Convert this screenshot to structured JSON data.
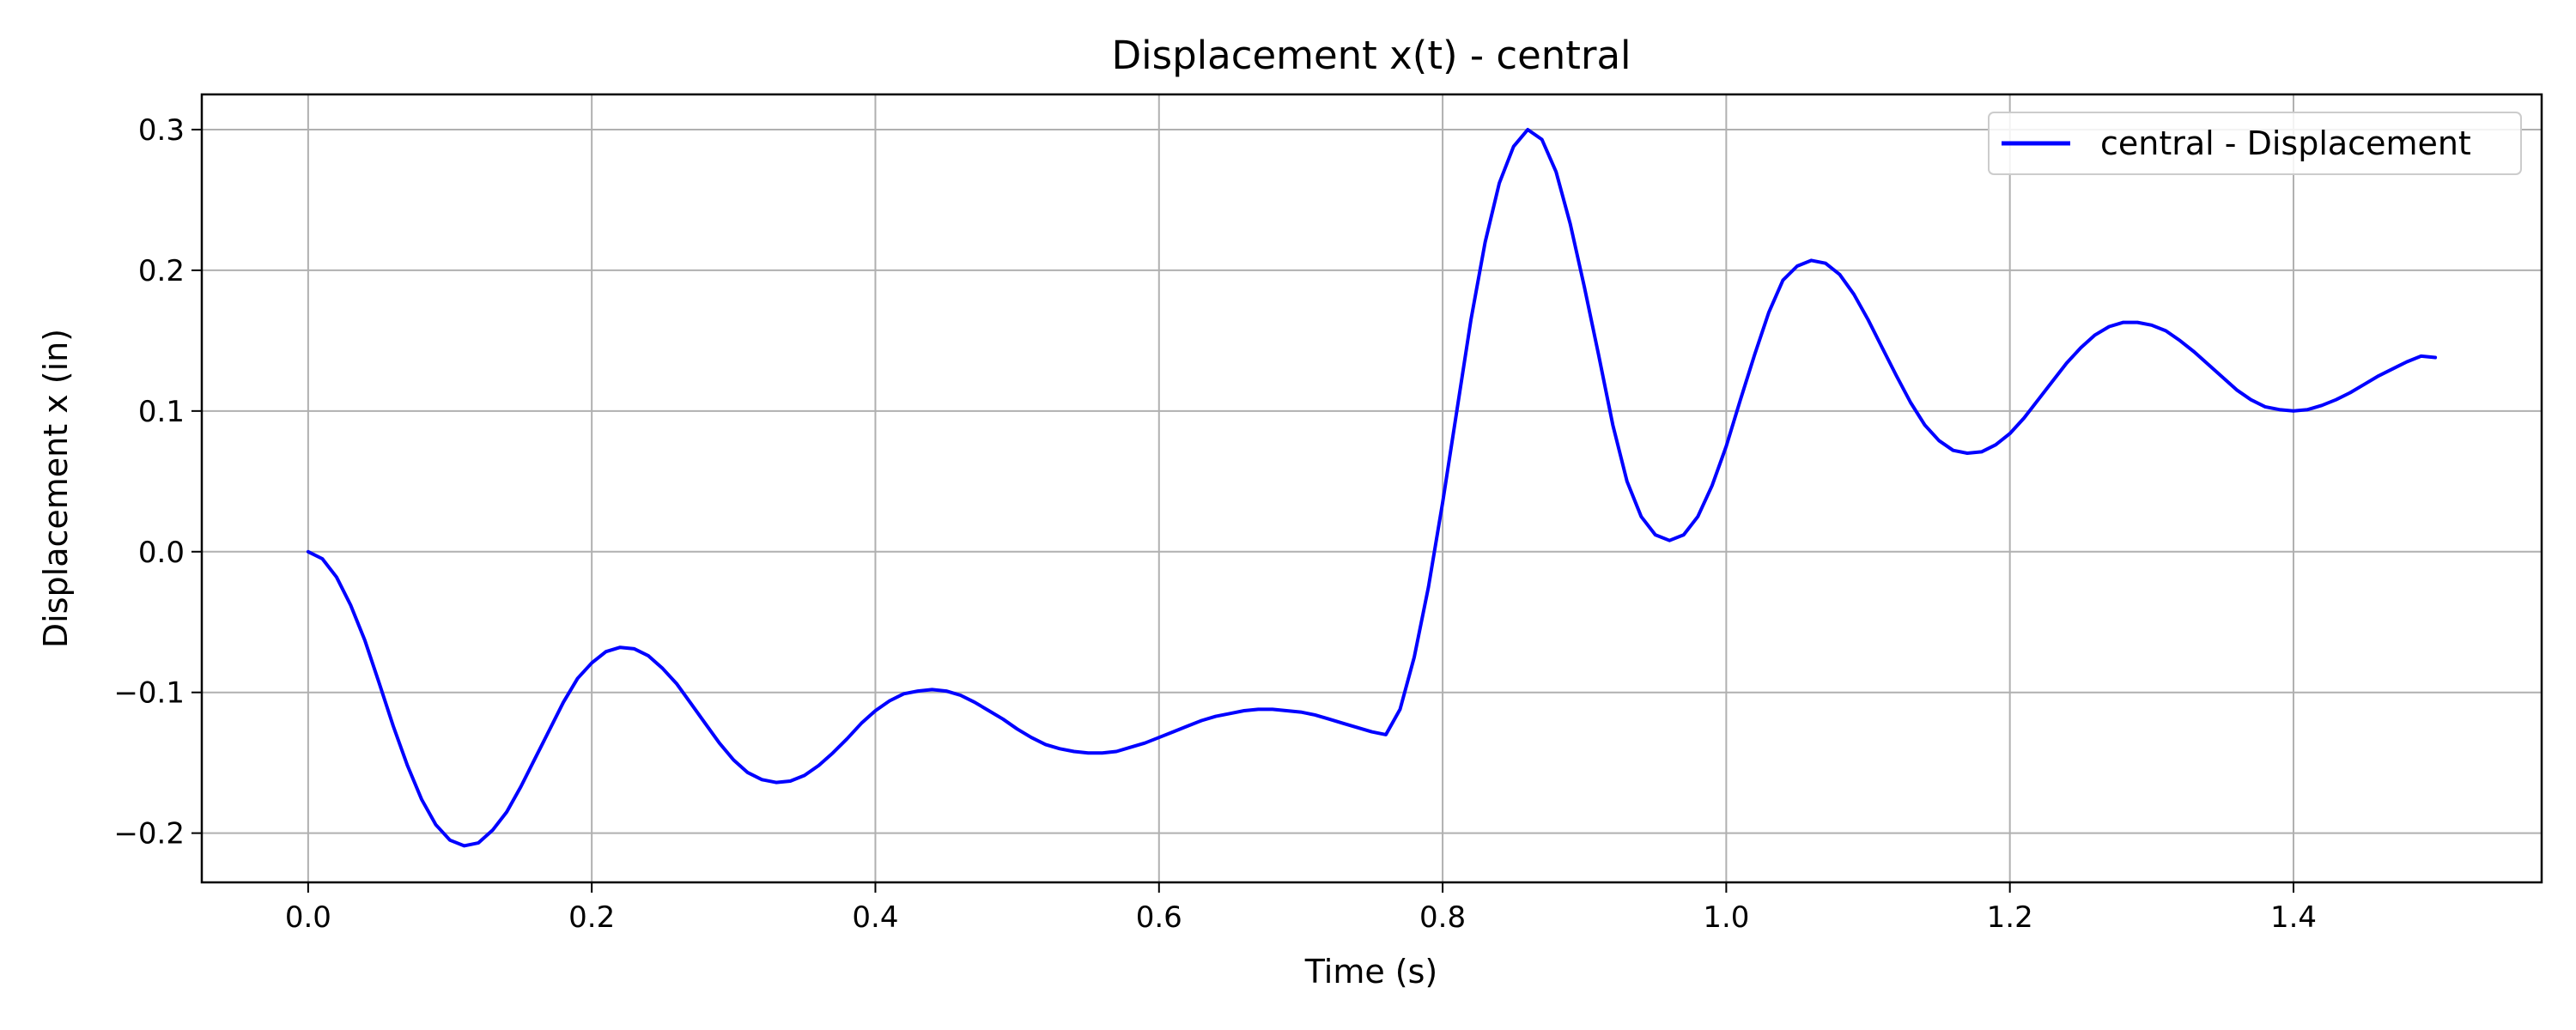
{
  "chart_data": {
    "type": "line",
    "title": "Displacement x(t) - central",
    "xlabel": "Time (s)",
    "ylabel": "Displacement x (in)",
    "xlim": [
      -0.075,
      1.575
    ],
    "ylim": [
      -0.235,
      0.325
    ],
    "xticks": [
      0.0,
      0.2,
      0.4,
      0.6,
      0.8,
      1.0,
      1.2,
      1.4
    ],
    "xtick_labels": [
      "0.0",
      "0.2",
      "0.4",
      "0.6",
      "0.8",
      "1.0",
      "1.2",
      "1.4"
    ],
    "yticks": [
      -0.2,
      -0.1,
      0.0,
      0.1,
      0.2,
      0.3
    ],
    "ytick_labels": [
      "−0.2",
      "−0.1",
      "0.0",
      "0.1",
      "0.2",
      "0.3"
    ],
    "grid": true,
    "legend_position": "top-right",
    "series": [
      {
        "name": "central - Displacement",
        "color": "#0000ff",
        "x": [
          0.0,
          0.01,
          0.02,
          0.03,
          0.04,
          0.05,
          0.06,
          0.07,
          0.08,
          0.09,
          0.1,
          0.11,
          0.12,
          0.13,
          0.14,
          0.15,
          0.16,
          0.17,
          0.18,
          0.19,
          0.2,
          0.21,
          0.22,
          0.23,
          0.24,
          0.25,
          0.26,
          0.27,
          0.28,
          0.29,
          0.3,
          0.31,
          0.32,
          0.33,
          0.34,
          0.35,
          0.36,
          0.37,
          0.38,
          0.39,
          0.4,
          0.41,
          0.42,
          0.43,
          0.44,
          0.45,
          0.46,
          0.47,
          0.48,
          0.49,
          0.5,
          0.51,
          0.52,
          0.53,
          0.54,
          0.55,
          0.56,
          0.57,
          0.58,
          0.59,
          0.6,
          0.61,
          0.62,
          0.63,
          0.64,
          0.65,
          0.66,
          0.67,
          0.68,
          0.69,
          0.7,
          0.71,
          0.72,
          0.73,
          0.74,
          0.75,
          0.76,
          0.77,
          0.78,
          0.79,
          0.8,
          0.81,
          0.82,
          0.83,
          0.84,
          0.85,
          0.86,
          0.87,
          0.88,
          0.89,
          0.9,
          0.91,
          0.92,
          0.93,
          0.94,
          0.95,
          0.96,
          0.97,
          0.98,
          0.99,
          1.0,
          1.01,
          1.02,
          1.03,
          1.04,
          1.05,
          1.06,
          1.07,
          1.08,
          1.09,
          1.1,
          1.11,
          1.12,
          1.13,
          1.14,
          1.15,
          1.16,
          1.17,
          1.18,
          1.19,
          1.2,
          1.21,
          1.22,
          1.23,
          1.24,
          1.25,
          1.26,
          1.27,
          1.28,
          1.29,
          1.3,
          1.31,
          1.32,
          1.33,
          1.34,
          1.35,
          1.36,
          1.37,
          1.38,
          1.39,
          1.4,
          1.41,
          1.42,
          1.43,
          1.44,
          1.45,
          1.46,
          1.47,
          1.48,
          1.49,
          1.5
        ],
        "y": [
          0.0,
          -0.005,
          -0.018,
          -0.038,
          -0.063,
          -0.093,
          -0.124,
          -0.152,
          -0.176,
          -0.194,
          -0.205,
          -0.209,
          -0.207,
          -0.198,
          -0.185,
          -0.167,
          -0.147,
          -0.127,
          -0.107,
          -0.09,
          -0.079,
          -0.071,
          -0.068,
          -0.069,
          -0.074,
          -0.083,
          -0.094,
          -0.108,
          -0.122,
          -0.136,
          -0.148,
          -0.157,
          -0.162,
          -0.164,
          -0.163,
          -0.159,
          -0.152,
          -0.143,
          -0.133,
          -0.122,
          -0.113,
          -0.106,
          -0.101,
          -0.099,
          -0.098,
          -0.099,
          -0.102,
          -0.107,
          -0.113,
          -0.119,
          -0.126,
          -0.132,
          -0.137,
          -0.14,
          -0.142,
          -0.143,
          -0.143,
          -0.142,
          -0.139,
          -0.136,
          -0.132,
          -0.128,
          -0.124,
          -0.12,
          -0.117,
          -0.115,
          -0.113,
          -0.112,
          -0.112,
          -0.113,
          -0.114,
          -0.116,
          -0.119,
          -0.122,
          -0.125,
          -0.128,
          -0.13,
          -0.112,
          -0.075,
          -0.025,
          0.035,
          0.1,
          0.165,
          0.22,
          0.262,
          0.288,
          0.3,
          0.293,
          0.27,
          0.233,
          0.188,
          0.14,
          0.09,
          0.05,
          0.025,
          0.012,
          0.008,
          0.012,
          0.025,
          0.047,
          0.075,
          0.108,
          0.14,
          0.17,
          0.193,
          0.203,
          0.207,
          0.205,
          0.197,
          0.183,
          0.165,
          0.145,
          0.125,
          0.106,
          0.09,
          0.079,
          0.072,
          0.07,
          0.071,
          0.076,
          0.084,
          0.095,
          0.108,
          0.121,
          0.134,
          0.145,
          0.154,
          0.16,
          0.163,
          0.163,
          0.161,
          0.157,
          0.15,
          0.142,
          0.133,
          0.124,
          0.115,
          0.108,
          0.103,
          0.101,
          0.1,
          0.101,
          0.104,
          0.108,
          0.113,
          0.119,
          0.125,
          0.13,
          0.135,
          0.139,
          0.138
        ]
      }
    ]
  }
}
